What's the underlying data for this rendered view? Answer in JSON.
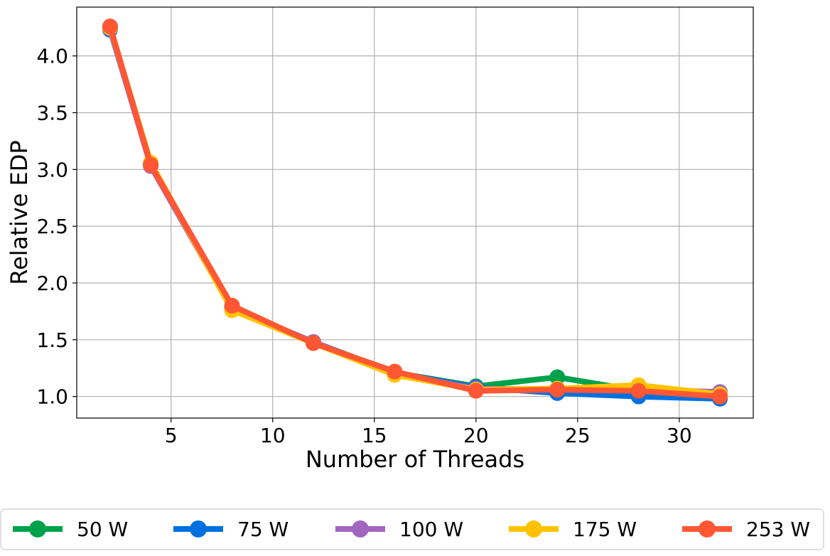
{
  "chart_data": {
    "type": "line",
    "title": "",
    "xlabel": "Number of Threads",
    "ylabel": "Relative EDP",
    "xlim": [
      0.36,
      33.64
    ],
    "ylim": [
      0.81,
      4.43
    ],
    "xticks": [
      5,
      10,
      15,
      20,
      25,
      30
    ],
    "xtick_labels": [
      "5",
      "10",
      "15",
      "20",
      "25",
      "30"
    ],
    "yticks": [
      1.0,
      1.5,
      2.0,
      2.5,
      3.0,
      3.5,
      4.0
    ],
    "ytick_labels": [
      "1.0",
      "1.5",
      "2.0",
      "2.5",
      "3.0",
      "3.5",
      "4.0"
    ],
    "grid": true,
    "legend_position": "bottom-outside",
    "x": [
      2,
      4,
      8,
      12,
      16,
      20,
      24,
      28,
      32
    ],
    "series": [
      {
        "name": "50 W",
        "color": "#00a14b",
        "values": [
          4.25,
          3.04,
          1.77,
          1.47,
          1.21,
          1.09,
          1.17,
          1.05,
          1.03
        ]
      },
      {
        "name": "75 W",
        "color": "#0070e0",
        "values": [
          4.23,
          3.04,
          1.78,
          1.48,
          1.21,
          1.08,
          1.03,
          1.0,
          0.98
        ]
      },
      {
        "name": "100 W",
        "color": "#a066c0",
        "values": [
          4.24,
          3.03,
          1.77,
          1.48,
          1.2,
          1.07,
          1.06,
          1.06,
          1.04
        ]
      },
      {
        "name": "175 W",
        "color": "#ffc200",
        "values": [
          4.25,
          3.06,
          1.76,
          1.47,
          1.19,
          1.06,
          1.07,
          1.1,
          1.02
        ]
      },
      {
        "name": "253 W",
        "color": "#ff5733",
        "values": [
          4.26,
          3.04,
          1.8,
          1.47,
          1.22,
          1.05,
          1.06,
          1.05,
          1.0
        ]
      }
    ]
  }
}
